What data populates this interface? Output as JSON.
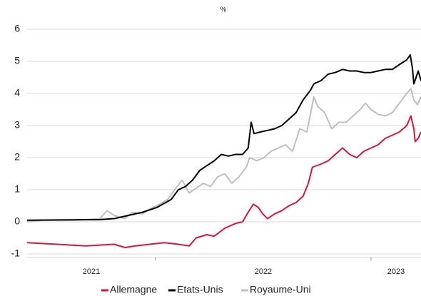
{
  "chart_data": {
    "type": "line",
    "title": "%",
    "xlim": [
      2021.404,
      2023.232
    ],
    "xticks": [
      {
        "value": 2021.702,
        "label": "2021"
      },
      {
        "value": 2022.5,
        "label": "2022"
      },
      {
        "value": 2023.116,
        "label": "2023"
      }
    ],
    "xtick_marks": [
      2022,
      2023
    ],
    "ylim": [
      -1.1,
      6
    ],
    "yticks": [
      -1,
      0,
      1,
      2,
      3,
      4,
      5,
      6
    ],
    "grid": true,
    "legend": "bottom",
    "series": [
      {
        "name": "Allemagne",
        "color": "#d5173b",
        "x": [
          2021.404,
          2021.543,
          2021.675,
          2021.808,
          2021.858,
          2021.907,
          2021.974,
          2022.04,
          2022.106,
          2022.156,
          2022.189,
          2022.238,
          2022.272,
          2022.321,
          2022.371,
          2022.404,
          2022.43,
          2022.454,
          2022.477,
          2022.497,
          2022.52,
          2022.553,
          2022.586,
          2022.619,
          2022.652,
          2022.685,
          2022.709,
          2022.728,
          2022.768,
          2022.801,
          2022.834,
          2022.868,
          2022.901,
          2022.934,
          2022.967,
          2023.0,
          2023.033,
          2023.066,
          2023.099,
          2023.132,
          2023.166,
          2023.185,
          2023.199,
          2023.205,
          2023.219,
          2023.232
        ],
        "values": [
          -0.65,
          -0.7,
          -0.75,
          -0.7,
          -0.8,
          -0.75,
          -0.7,
          -0.65,
          -0.7,
          -0.75,
          -0.5,
          -0.4,
          -0.45,
          -0.2,
          -0.05,
          0.0,
          0.3,
          0.55,
          0.45,
          0.25,
          0.1,
          0.25,
          0.35,
          0.5,
          0.6,
          0.8,
          1.2,
          1.7,
          1.8,
          1.9,
          2.1,
          2.3,
          2.1,
          2.0,
          2.2,
          2.3,
          2.4,
          2.6,
          2.7,
          2.8,
          3.0,
          3.3,
          2.9,
          2.5,
          2.6,
          2.8
        ]
      },
      {
        "name": "Etats-Unis",
        "color": "#000000",
        "x": [
          2021.404,
          2021.742,
          2021.808,
          2021.94,
          2022.007,
          2022.073,
          2022.106,
          2022.139,
          2022.172,
          2022.205,
          2022.238,
          2022.272,
          2022.305,
          2022.338,
          2022.371,
          2022.404,
          2022.43,
          2022.444,
          2022.457,
          2022.487,
          2022.52,
          2022.553,
          2022.586,
          2022.619,
          2022.652,
          2022.685,
          2022.719,
          2022.735,
          2022.768,
          2022.801,
          2022.834,
          2022.868,
          2022.901,
          2022.934,
          2022.967,
          2023.0,
          2023.033,
          2023.066,
          2023.099,
          2023.132,
          2023.166,
          2023.182,
          2023.192,
          2023.199,
          2023.209,
          2023.219,
          2023.232
        ],
        "values": [
          0.05,
          0.07,
          0.1,
          0.3,
          0.45,
          0.7,
          1.0,
          1.1,
          1.3,
          1.6,
          1.75,
          1.9,
          2.1,
          2.05,
          2.1,
          2.1,
          2.3,
          3.1,
          2.75,
          2.8,
          2.85,
          2.9,
          3.0,
          3.2,
          3.4,
          3.8,
          4.1,
          4.3,
          4.4,
          4.6,
          4.65,
          4.75,
          4.7,
          4.7,
          4.65,
          4.65,
          4.7,
          4.75,
          4.75,
          4.9,
          5.05,
          5.2,
          4.8,
          4.3,
          4.5,
          4.7,
          4.4
        ]
      },
      {
        "name": "Royaume-Uni",
        "color": "#bfbfbf",
        "x": [
          2021.404,
          2021.477,
          2021.609,
          2021.742,
          2021.775,
          2021.808,
          2021.858,
          2021.891,
          2021.94,
          2021.974,
          2022.007,
          2022.056,
          2022.089,
          2022.123,
          2022.156,
          2022.189,
          2022.222,
          2022.255,
          2022.288,
          2022.321,
          2022.354,
          2022.387,
          2022.421,
          2022.437,
          2022.47,
          2022.503,
          2022.536,
          2022.57,
          2022.603,
          2022.636,
          2022.669,
          2022.702,
          2022.735,
          2022.752,
          2022.785,
          2022.818,
          2022.851,
          2022.884,
          2022.917,
          2022.95,
          2022.974,
          2023.0,
          2023.033,
          2023.066,
          2023.099,
          2023.132,
          2023.166,
          2023.185,
          2023.199,
          2023.215,
          2023.232
        ],
        "values": [
          0.0,
          0.05,
          0.05,
          0.1,
          0.35,
          0.2,
          0.1,
          0.3,
          0.25,
          0.4,
          0.5,
          0.7,
          1.0,
          1.3,
          0.9,
          1.05,
          1.2,
          1.1,
          1.4,
          1.5,
          1.2,
          1.4,
          1.7,
          2.0,
          1.9,
          2.0,
          2.2,
          2.3,
          2.4,
          2.2,
          2.9,
          2.8,
          3.9,
          3.6,
          3.4,
          2.9,
          3.1,
          3.1,
          3.3,
          3.5,
          3.7,
          3.5,
          3.35,
          3.3,
          3.4,
          3.7,
          4.0,
          4.15,
          3.8,
          3.65,
          3.9
        ]
      }
    ]
  }
}
